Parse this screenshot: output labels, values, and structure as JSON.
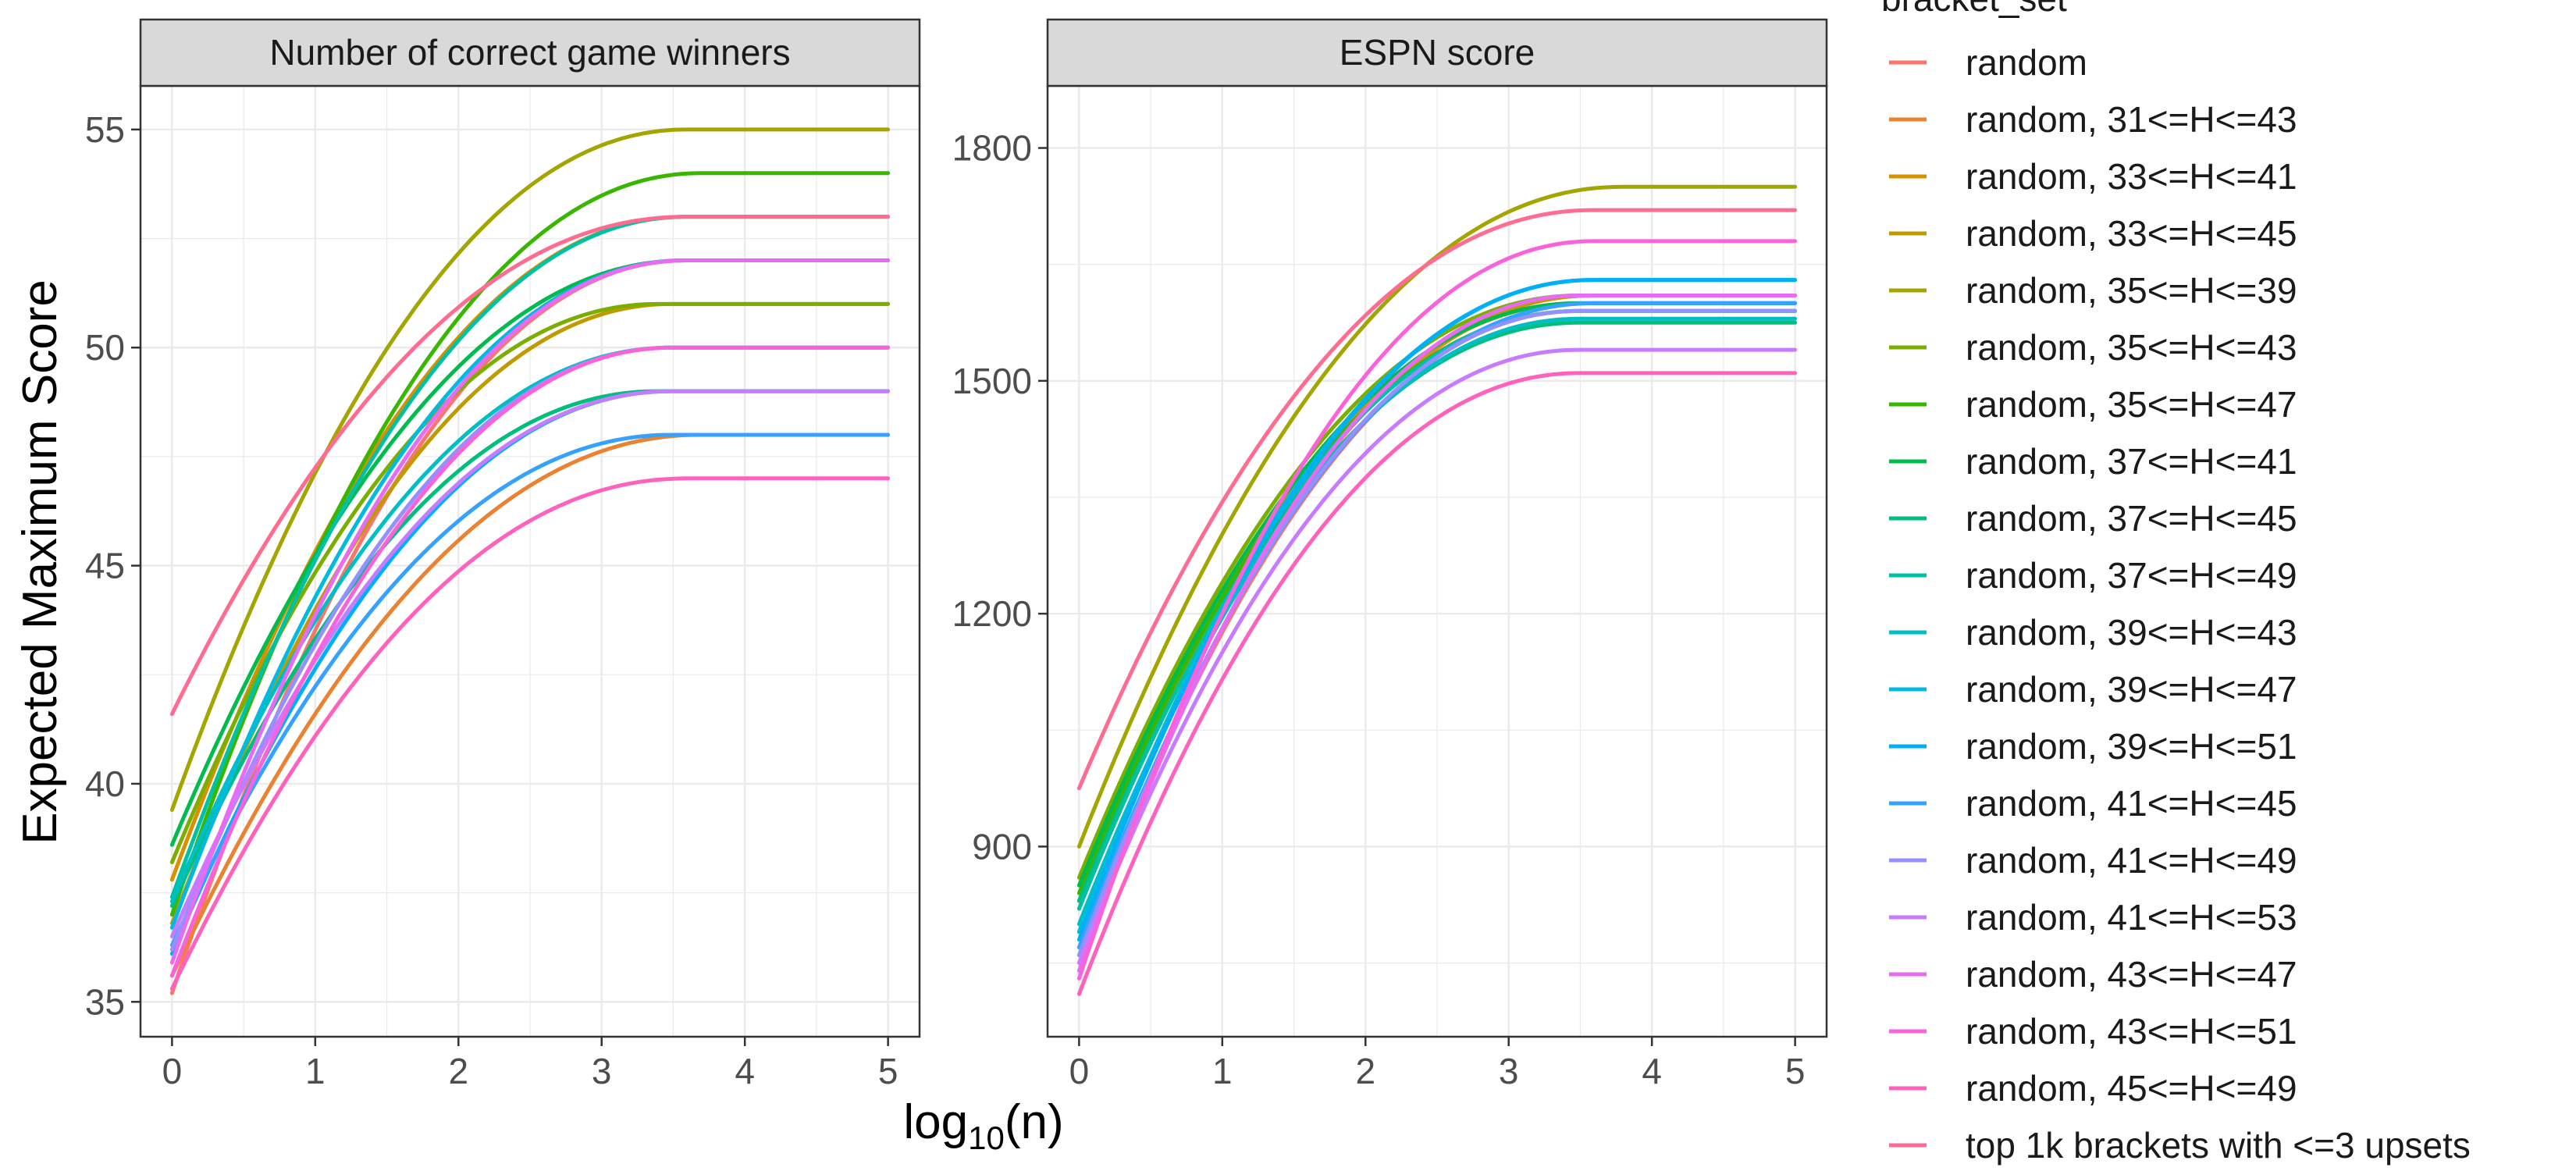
{
  "chart_data": {
    "type": "line",
    "xlabel": "log10(n)",
    "xlabel_main": "log",
    "xlabel_sub": "10",
    "xlabel_suffix": "(n)",
    "ylabel": "Expected Maximum Score",
    "legend_title": "bracket_set",
    "legend_position": "right",
    "grid": true,
    "x_ticks": [
      "0",
      "1",
      "2",
      "3",
      "4",
      "5"
    ],
    "series_names": [
      "random",
      "random, 31<=H<=43",
      "random, 33<=H<=41",
      "random, 33<=H<=45",
      "random, 35<=H<=39",
      "random, 35<=H<=43",
      "random, 35<=H<=47",
      "random, 37<=H<=41",
      "random, 37<=H<=45",
      "random, 37<=H<=49",
      "random, 39<=H<=43",
      "random, 39<=H<=47",
      "random, 39<=H<=51",
      "random, 41<=H<=45",
      "random, 41<=H<=49",
      "random, 41<=H<=53",
      "random, 43<=H<=47",
      "random, 43<=H<=51",
      "random, 45<=H<=49",
      "top 1k brackets with <=3 upsets"
    ],
    "series_colors": [
      "#F8766D",
      "#EA8331",
      "#D89000",
      "#C09B00",
      "#A3A500",
      "#7CAE00",
      "#39B600",
      "#00BB4E",
      "#00BF7D",
      "#00C1A3",
      "#00BFC4",
      "#00BAE0",
      "#00B0F6",
      "#35A2FF",
      "#9590FF",
      "#C77CFF",
      "#E76BF3",
      "#FA62DB",
      "#FF62BC",
      "#FF6C91"
    ],
    "panels": [
      {
        "title": "Number of correct game winners",
        "xlim": [
          -0.22,
          5.22
        ],
        "ylim": [
          34.2,
          56.0
        ],
        "y_ticks": [
          "35",
          "40",
          "45",
          "50",
          "55"
        ],
        "series": [
          {
            "name": "random",
            "start": 35.2,
            "end": 52,
            "x_knee": 3.6
          },
          {
            "name": "random, 31<=H<=43",
            "start": 35.6,
            "end": 48,
            "x_knee": 3.7
          },
          {
            "name": "random, 33<=H<=41",
            "start": 37.8,
            "end": 53,
            "x_knee": 3.6
          },
          {
            "name": "random, 33<=H<=45",
            "start": 36.8,
            "end": 51,
            "x_knee": 3.5
          },
          {
            "name": "random, 35<=H<=39",
            "start": 39.4,
            "end": 55,
            "x_knee": 3.6
          },
          {
            "name": "random, 35<=H<=43",
            "start": 38.2,
            "end": 51,
            "x_knee": 3.4
          },
          {
            "name": "random, 35<=H<=47",
            "start": 37.0,
            "end": 54,
            "x_knee": 3.7
          },
          {
            "name": "random, 37<=H<=41",
            "start": 38.6,
            "end": 52,
            "x_knee": 3.6
          },
          {
            "name": "random, 37<=H<=45",
            "start": 37.2,
            "end": 49,
            "x_knee": 3.4
          },
          {
            "name": "random, 37<=H<=49",
            "start": 37.4,
            "end": 53,
            "x_knee": 3.6
          },
          {
            "name": "random, 39<=H<=43",
            "start": 37.3,
            "end": 50,
            "x_knee": 3.5
          },
          {
            "name": "random, 39<=H<=47",
            "start": 36.7,
            "end": 52,
            "x_knee": 3.6
          },
          {
            "name": "random, 39<=H<=51",
            "start": 36.1,
            "end": 49,
            "x_knee": 3.5
          },
          {
            "name": "random, 41<=H<=45",
            "start": 36.3,
            "end": 48,
            "x_knee": 3.5
          },
          {
            "name": "random, 41<=H<=49",
            "start": 36.2,
            "end": 50,
            "x_knee": 3.5
          },
          {
            "name": "random, 41<=H<=53",
            "start": 36.5,
            "end": 49,
            "x_knee": 3.5
          },
          {
            "name": "random, 43<=H<=47",
            "start": 35.9,
            "end": 52,
            "x_knee": 3.6
          },
          {
            "name": "random, 43<=H<=51",
            "start": 35.6,
            "end": 50,
            "x_knee": 3.5
          },
          {
            "name": "random, 45<=H<=49",
            "start": 35.3,
            "end": 47,
            "x_knee": 3.6
          },
          {
            "name": "top 1k brackets with <=3 upsets",
            "start": 41.6,
            "end": 53,
            "x_knee": 3.6
          }
        ]
      },
      {
        "title": "ESPN score",
        "xlim": [
          -0.22,
          5.22
        ],
        "ylim": [
          655,
          1880
        ],
        "y_ticks": [
          "900",
          "1200",
          "1500",
          "1800"
        ],
        "series": [
          {
            "name": "random",
            "start": 760,
            "end": 1600,
            "x_knee": 3.6
          },
          {
            "name": "random, 31<=H<=43",
            "start": 790,
            "end": 1610,
            "x_knee": 3.6
          },
          {
            "name": "random, 33<=H<=41",
            "start": 830,
            "end": 1600,
            "x_knee": 3.5
          },
          {
            "name": "random, 33<=H<=45",
            "start": 820,
            "end": 1610,
            "x_knee": 3.6
          },
          {
            "name": "random, 35<=H<=39",
            "start": 900,
            "end": 1750,
            "x_knee": 3.8
          },
          {
            "name": "random, 35<=H<=43",
            "start": 860,
            "end": 1610,
            "x_knee": 3.5
          },
          {
            "name": "random, 35<=H<=47",
            "start": 840,
            "end": 1590,
            "x_knee": 3.5
          },
          {
            "name": "random, 37<=H<=41",
            "start": 850,
            "end": 1600,
            "x_knee": 3.5
          },
          {
            "name": "random, 37<=H<=45",
            "start": 830,
            "end": 1575,
            "x_knee": 3.5
          },
          {
            "name": "random, 37<=H<=49",
            "start": 820,
            "end": 1590,
            "x_knee": 3.5
          },
          {
            "name": "random, 39<=H<=43",
            "start": 800,
            "end": 1580,
            "x_knee": 3.5
          },
          {
            "name": "random, 39<=H<=47",
            "start": 790,
            "end": 1630,
            "x_knee": 3.6
          },
          {
            "name": "random, 39<=H<=51",
            "start": 780,
            "end": 1630,
            "x_knee": 3.6
          },
          {
            "name": "random, 41<=H<=45",
            "start": 770,
            "end": 1600,
            "x_knee": 3.6
          },
          {
            "name": "random, 41<=H<=49",
            "start": 760,
            "end": 1590,
            "x_knee": 3.5
          },
          {
            "name": "random, 41<=H<=53",
            "start": 750,
            "end": 1540,
            "x_knee": 3.5
          },
          {
            "name": "random, 43<=H<=47",
            "start": 740,
            "end": 1610,
            "x_knee": 3.5
          },
          {
            "name": "random, 43<=H<=51",
            "start": 730,
            "end": 1680,
            "x_knee": 3.6
          },
          {
            "name": "random, 45<=H<=49",
            "start": 710,
            "end": 1510,
            "x_knee": 3.5
          },
          {
            "name": "top 1k brackets with <=3 upsets",
            "start": 975,
            "end": 1720,
            "x_knee": 3.6
          }
        ]
      }
    ]
  }
}
